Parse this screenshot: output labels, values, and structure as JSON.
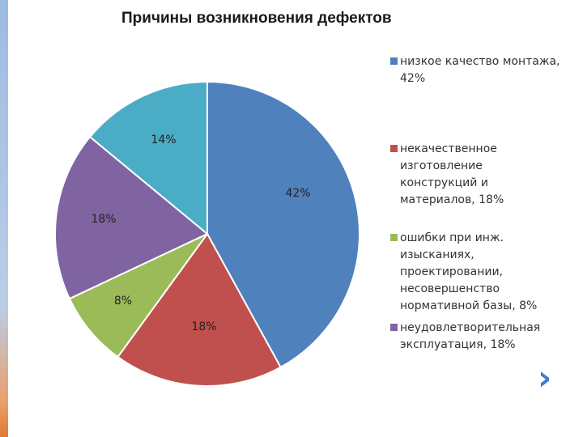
{
  "chart_data": {
    "type": "pie",
    "title": "Причины возникновения дефектов",
    "categories": [
      "низкое качество монтажа, 42%",
      "некачественное изготовление конструкций и материалов, 18%",
      "ошибки при инж. изысканиях, проектировании, несовершенство нормативной базы, 8%",
      "неудовлетворительная эксплуатация, 18%",
      "14%"
    ],
    "values": [
      42,
      18,
      8,
      18,
      14
    ],
    "data_labels": [
      "42%",
      "18%",
      "8%",
      "18%",
      "14%"
    ],
    "colors": [
      "#4f81bd",
      "#c0504d",
      "#9bbb59",
      "#8064a2",
      "#4bacc6"
    ],
    "legend": {
      "placement": "right",
      "items": [
        {
          "text": "низкое качество монтажа, 42%",
          "color": "#4f81bd"
        },
        {
          "text": "некачественное изготовление конструкций и материалов, 18%",
          "color": "#c0504d"
        },
        {
          "text": "ошибки при инж. изысканиях, проектировании, несовершенство нормативной базы, 8%",
          "color": "#9bbb59"
        },
        {
          "text": "неудовлетворительная эксплуатация, 18%",
          "color": "#8064a2"
        }
      ]
    }
  },
  "nav": {
    "next_icon": "chevron-right-icon",
    "glyph": "›"
  }
}
